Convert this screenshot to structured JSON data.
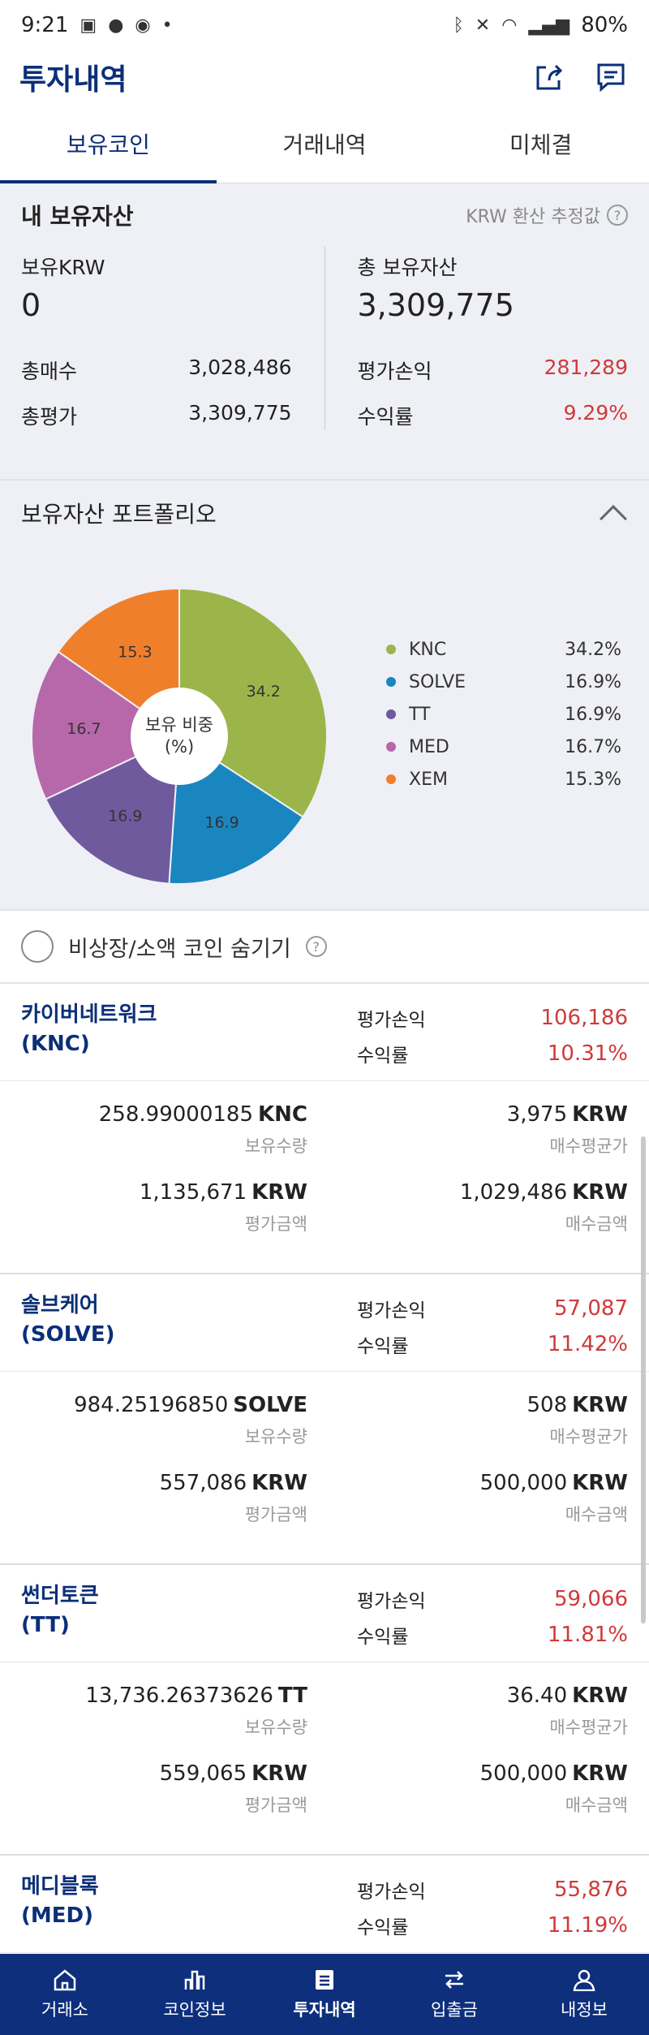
{
  "status_bar": {
    "time": "9:21",
    "battery": "80%"
  },
  "header": {
    "title": "투자내역"
  },
  "tabs": [
    {
      "label": "보유코인",
      "active": true
    },
    {
      "label": "거래내역",
      "active": false
    },
    {
      "label": "미체결",
      "active": false
    }
  ],
  "summary": {
    "title": "내 보유자산",
    "note": "KRW 환산 추정값",
    "krw_label": "보유KRW",
    "krw_value": "0",
    "total_label": "총 보유자산",
    "total_value": "3,309,775",
    "buy_label": "총매수",
    "buy_value": "3,028,486",
    "eval_label": "총평가",
    "eval_value": "3,309,775",
    "pl_label": "평가손익",
    "pl_value": "281,289",
    "rate_label": "수익률",
    "rate_value": "9.29%"
  },
  "portfolio": {
    "title": "보유자산 포트폴리오",
    "center_line1": "보유 비중",
    "center_line2": "(%)"
  },
  "chart_data": {
    "type": "pie",
    "categories": [
      "KNC",
      "SOLVE",
      "TT",
      "MED",
      "XEM"
    ],
    "values": [
      34.2,
      16.9,
      16.9,
      16.7,
      15.3
    ],
    "slice_labels": [
      "34.2",
      "16.9",
      "16.9",
      "16.7",
      "15.3"
    ],
    "legend_values": [
      "34.2%",
      "16.9%",
      "16.9%",
      "16.7%",
      "15.3%"
    ],
    "colors": [
      "#9bb54a",
      "#1a86c0",
      "#6f5a9e",
      "#b668aa",
      "#f07f2c"
    ],
    "legend_position": "right"
  },
  "hide_row": {
    "label": "비상장/소액 코인 숨기기"
  },
  "coins": [
    {
      "name_kr": "카이버네트워크",
      "symbol": "(KNC)",
      "pl_label": "평가손익",
      "pl_value": "106,186",
      "rate_label": "수익률",
      "rate_value": "10.31%",
      "qty_value": "258.99000185",
      "qty_unit": "KNC",
      "qty_label": "보유수량",
      "avg_value": "3,975",
      "avg_unit": "KRW",
      "avg_label": "매수평균가",
      "eval_value": "1,135,671",
      "eval_unit": "KRW",
      "eval_label": "평가금액",
      "buy_value": "1,029,486",
      "buy_unit": "KRW",
      "buy_label": "매수금액"
    },
    {
      "name_kr": "솔브케어",
      "symbol": "(SOLVE)",
      "pl_label": "평가손익",
      "pl_value": "57,087",
      "rate_label": "수익률",
      "rate_value": "11.42%",
      "qty_value": "984.25196850",
      "qty_unit": "SOLVE",
      "qty_label": "보유수량",
      "avg_value": "508",
      "avg_unit": "KRW",
      "avg_label": "매수평균가",
      "eval_value": "557,086",
      "eval_unit": "KRW",
      "eval_label": "평가금액",
      "buy_value": "500,000",
      "buy_unit": "KRW",
      "buy_label": "매수금액"
    },
    {
      "name_kr": "썬더토큰",
      "symbol": "(TT)",
      "pl_label": "평가손익",
      "pl_value": "59,066",
      "rate_label": "수익률",
      "rate_value": "11.81%",
      "qty_value": "13,736.26373626",
      "qty_unit": "TT",
      "qty_label": "보유수량",
      "avg_value": "36.40",
      "avg_unit": "KRW",
      "avg_label": "매수평균가",
      "eval_value": "559,065",
      "eval_unit": "KRW",
      "eval_label": "평가금액",
      "buy_value": "500,000",
      "buy_unit": "KRW",
      "buy_label": "매수금액"
    },
    {
      "name_kr": "메디블록",
      "symbol": "(MED)",
      "pl_label": "평가손익",
      "pl_value": "55,876",
      "rate_label": "수익률",
      "rate_value": "11.19%"
    }
  ],
  "bottom_nav": [
    {
      "label": "거래소",
      "icon": "home-icon"
    },
    {
      "label": "코인정보",
      "icon": "bar-chart-icon"
    },
    {
      "label": "투자내역",
      "icon": "document-icon",
      "active": true
    },
    {
      "label": "입출금",
      "icon": "transfer-icon"
    },
    {
      "label": "내정보",
      "icon": "person-icon"
    }
  ]
}
